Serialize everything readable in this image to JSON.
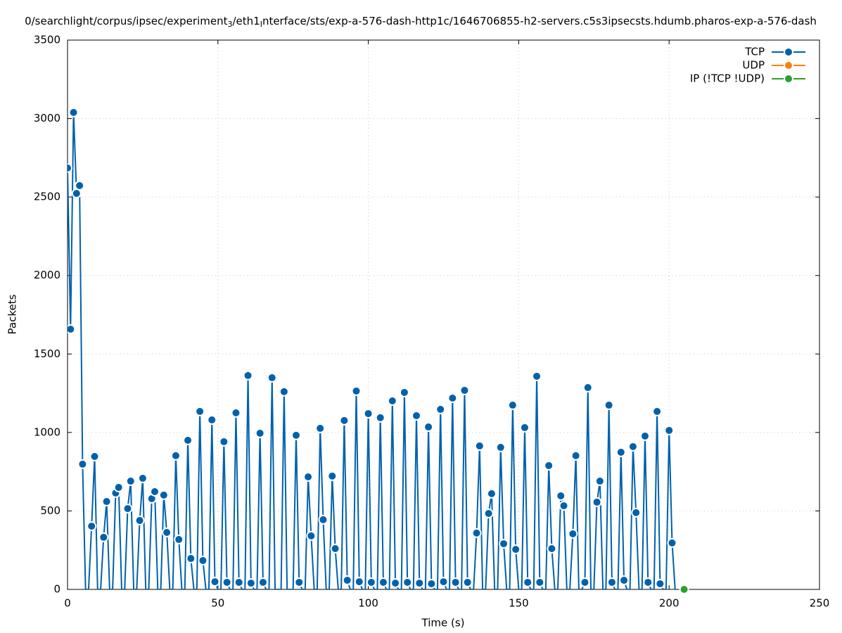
{
  "chart_data": {
    "type": "line",
    "title": [
      "0/searchlight/corpus/ipsec/experiment",
      "3",
      "/eth1",
      "I",
      "nterface/sts/exp-a-576-dash-http1c/1646706855-h2-servers.c5s3ipsecsts.hdumb.pharos-exp-a-576-dash"
    ],
    "xlabel": "Time (s)",
    "ylabel": "Packets",
    "xlim": [
      0,
      250
    ],
    "ylim": [
      0,
      3500
    ],
    "xticks": [
      0,
      50,
      100,
      150,
      200,
      250
    ],
    "yticks": [
      0,
      500,
      1000,
      1500,
      2000,
      2500,
      3000,
      3500
    ],
    "grid": true,
    "legend": "top-right",
    "series": [
      {
        "name": "TCP",
        "color": "#0061ad",
        "x": [
          0,
          1,
          2,
          3,
          4,
          5,
          6,
          7,
          8,
          9,
          10,
          11,
          12,
          13,
          14,
          15,
          16,
          17,
          18,
          19,
          20,
          21,
          22,
          23,
          24,
          25,
          26,
          27,
          28,
          29,
          30,
          31,
          32,
          33,
          34,
          35,
          36,
          37,
          38,
          39,
          40,
          41,
          42,
          43,
          44,
          45,
          46,
          47,
          48,
          49,
          50,
          51,
          52,
          53,
          54,
          55,
          56,
          57,
          58,
          59,
          60,
          61,
          62,
          63,
          64,
          65,
          66,
          67,
          68,
          69,
          70,
          71,
          72,
          73,
          74,
          75,
          76,
          77,
          78,
          79,
          80,
          81,
          82,
          83,
          84,
          85,
          86,
          87,
          88,
          89,
          90,
          91,
          92,
          93,
          94,
          95,
          96,
          97,
          98,
          99,
          100,
          101,
          102,
          103,
          104,
          105,
          106,
          107,
          108,
          109,
          110,
          111,
          112,
          113,
          114,
          115,
          116,
          117,
          118,
          119,
          120,
          121,
          122,
          123,
          124,
          125,
          126,
          127,
          128,
          129,
          130,
          131,
          132,
          133,
          134,
          135,
          136,
          137,
          138,
          139,
          140,
          141,
          142,
          143,
          144,
          145,
          146,
          147,
          148,
          149,
          150,
          151,
          152,
          153,
          154,
          155,
          156,
          157,
          158,
          159,
          160,
          161,
          162,
          163,
          164,
          165,
          166,
          167,
          168,
          169,
          170,
          171,
          172,
          173,
          174,
          175,
          176,
          177,
          178,
          179,
          180,
          181,
          182,
          183,
          184,
          185,
          186,
          187,
          188,
          189,
          190,
          191,
          192,
          193,
          194,
          195,
          196,
          197,
          198,
          199,
          200,
          201,
          202
        ],
        "values": [
          2685,
          1658,
          3039,
          2523,
          2573,
          798,
          0,
          0,
          403,
          847,
          0,
          0,
          332,
          560,
          0,
          0,
          614,
          650,
          0,
          0,
          515,
          690,
          0,
          0,
          439,
          708,
          0,
          0,
          578,
          623,
          0,
          0,
          601,
          363,
          0,
          0,
          852,
          318,
          0,
          0,
          950,
          197,
          0,
          0,
          1134,
          184,
          0,
          0,
          1080,
          49,
          0,
          0,
          941,
          45,
          0,
          0,
          1125,
          45,
          0,
          0,
          1363,
          40,
          0,
          0,
          995,
          45,
          0,
          0,
          1349,
          0,
          0,
          0,
          1260,
          0,
          0,
          0,
          982,
          45,
          0,
          0,
          717,
          341,
          0,
          0,
          1026,
          444,
          0,
          0,
          722,
          260,
          0,
          0,
          1076,
          58,
          0,
          0,
          1264,
          49,
          0,
          0,
          1120,
          45,
          0,
          0,
          1094,
          45,
          0,
          0,
          1201,
          40,
          0,
          0,
          1255,
          45,
          0,
          0,
          1107,
          40,
          0,
          0,
          1035,
          36,
          0,
          0,
          1147,
          49,
          0,
          0,
          1219,
          45,
          0,
          0,
          1268,
          45,
          0,
          0,
          359,
          914,
          0,
          0,
          484,
          610,
          0,
          0,
          905,
          291,
          0,
          0,
          1174,
          255,
          0,
          0,
          1031,
          45,
          0,
          0,
          1358,
          45,
          0,
          0,
          789,
          260,
          0,
          0,
          596,
          533,
          0,
          0,
          354,
          852,
          0,
          0,
          45,
          1286,
          0,
          0,
          556,
          690,
          0,
          0,
          1174,
          45,
          0,
          0,
          874,
          58,
          0,
          0,
          910,
          489,
          0,
          0,
          977,
          45,
          0,
          0,
          1134,
          36,
          0,
          0,
          1013,
          296,
          0
        ]
      },
      {
        "name": "UDP",
        "color": "#ff7f0e",
        "x": [],
        "values": []
      },
      {
        "name": "IP (!TCP  !UDP)",
        "color": "#2ca02c",
        "x": [
          205
        ],
        "values": [
          0
        ]
      }
    ]
  }
}
